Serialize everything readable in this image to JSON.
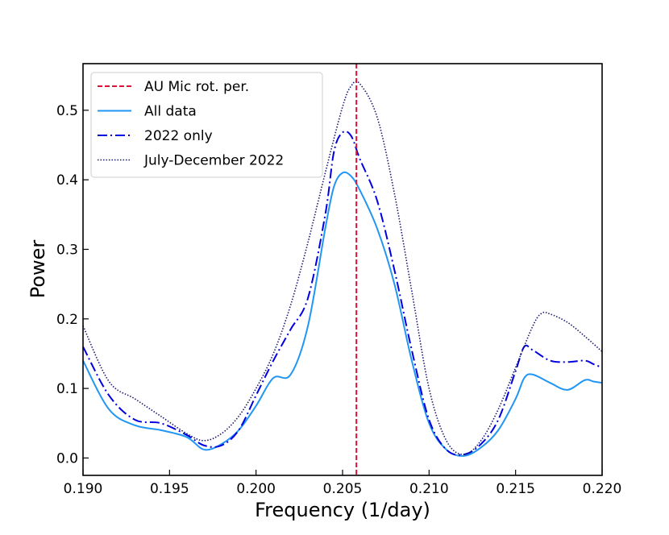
{
  "chart_data": {
    "type": "line",
    "title": "",
    "xlabel": "Frequency (1/day)",
    "ylabel": "Power",
    "xlim": [
      0.19,
      0.22
    ],
    "ylim": [
      -0.025,
      0.567
    ],
    "xticks": [
      0.19,
      0.195,
      0.2,
      0.205,
      0.21,
      0.215,
      0.22
    ],
    "xtick_labels": [
      "0.190",
      "0.195",
      "0.200",
      "0.205",
      "0.210",
      "0.215",
      "0.220"
    ],
    "yticks": [
      0.0,
      0.1,
      0.2,
      0.3,
      0.4,
      0.5
    ],
    "ytick_labels": [
      "0.0",
      "0.1",
      "0.2",
      "0.3",
      "0.4",
      "0.5"
    ],
    "grid": false,
    "legend_position": "top-left",
    "vline": {
      "name": "AU Mic rot. per.",
      "x": 0.2058,
      "color": "#dc143c",
      "style": "dashed"
    },
    "series": [
      {
        "name": "All data",
        "color": "#2196f3",
        "style": "solid",
        "x": [
          0.19,
          0.1915,
          0.193,
          0.1945,
          0.196,
          0.197,
          0.198,
          0.199,
          0.2,
          0.201,
          0.202,
          0.203,
          0.204,
          0.2045,
          0.205,
          0.2055,
          0.206,
          0.207,
          0.208,
          0.209,
          0.21,
          0.211,
          0.212,
          0.213,
          0.214,
          0.215,
          0.2155,
          0.216,
          0.217,
          0.218,
          0.219,
          0.2195,
          0.22
        ],
        "y": [
          0.14,
          0.07,
          0.047,
          0.04,
          0.03,
          0.012,
          0.02,
          0.04,
          0.075,
          0.115,
          0.12,
          0.19,
          0.33,
          0.39,
          0.41,
          0.405,
          0.385,
          0.33,
          0.25,
          0.14,
          0.05,
          0.012,
          0.003,
          0.015,
          0.04,
          0.085,
          0.115,
          0.12,
          0.108,
          0.098,
          0.112,
          0.11,
          0.108
        ]
      },
      {
        "name": "2022 only",
        "color": "#0000e0",
        "style": "dashdot",
        "x": [
          0.19,
          0.1915,
          0.193,
          0.1945,
          0.196,
          0.197,
          0.198,
          0.199,
          0.2,
          0.201,
          0.202,
          0.203,
          0.204,
          0.2045,
          0.205,
          0.2055,
          0.206,
          0.207,
          0.208,
          0.209,
          0.21,
          0.211,
          0.212,
          0.213,
          0.214,
          0.215,
          0.2155,
          0.216,
          0.217,
          0.218,
          0.219,
          0.2195,
          0.22
        ],
        "y": [
          0.16,
          0.09,
          0.055,
          0.05,
          0.033,
          0.018,
          0.018,
          0.04,
          0.09,
          0.14,
          0.185,
          0.23,
          0.35,
          0.44,
          0.468,
          0.463,
          0.43,
          0.37,
          0.27,
          0.155,
          0.055,
          0.012,
          0.005,
          0.02,
          0.055,
          0.125,
          0.16,
          0.155,
          0.14,
          0.138,
          0.14,
          0.135,
          0.13
        ]
      },
      {
        "name": "July-December 2022",
        "color": "#191970",
        "style": "dotted",
        "x": [
          0.19,
          0.1915,
          0.193,
          0.1945,
          0.196,
          0.197,
          0.198,
          0.199,
          0.2,
          0.201,
          0.202,
          0.203,
          0.204,
          0.205,
          0.2055,
          0.206,
          0.207,
          0.208,
          0.209,
          0.21,
          0.211,
          0.212,
          0.213,
          0.214,
          0.215,
          0.216,
          0.2165,
          0.217,
          0.218,
          0.219,
          0.22
        ],
        "y": [
          0.19,
          0.11,
          0.085,
          0.06,
          0.035,
          0.025,
          0.035,
          0.06,
          0.1,
          0.15,
          0.22,
          0.31,
          0.41,
          0.505,
          0.535,
          0.538,
          0.49,
          0.38,
          0.24,
          0.1,
          0.025,
          0.005,
          0.025,
          0.07,
          0.13,
          0.19,
          0.208,
          0.207,
          0.195,
          0.175,
          0.153
        ]
      }
    ]
  }
}
